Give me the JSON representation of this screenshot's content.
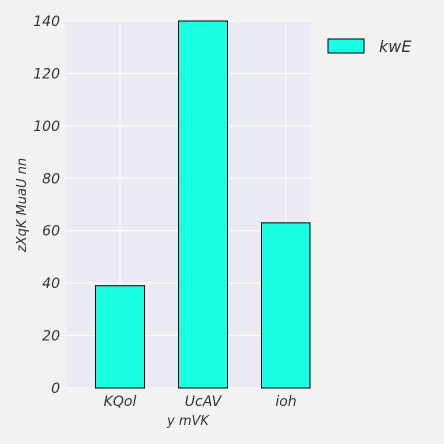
{
  "chart_data": {
    "type": "bar",
    "categories": [
      "KQol",
      "UcAV",
      "ioh"
    ],
    "series": [
      {
        "name": "kwE",
        "values": [
          39,
          140,
          63
        ]
      }
    ],
    "xlabel": "y mVK",
    "ylabel": "zXqK MuaU nn",
    "ylim": [
      0,
      140
    ],
    "yticks": [
      0,
      20,
      40,
      60,
      80,
      100,
      120,
      140
    ],
    "grid": true,
    "legend_position": "top-right"
  },
  "colors": {
    "background": "#f2f2f2",
    "plot_area": "#e9eaf2",
    "grid": "#ffffff",
    "bar_fill": "#19ffe2",
    "bar_edge": "#000000",
    "text": "#333333"
  }
}
